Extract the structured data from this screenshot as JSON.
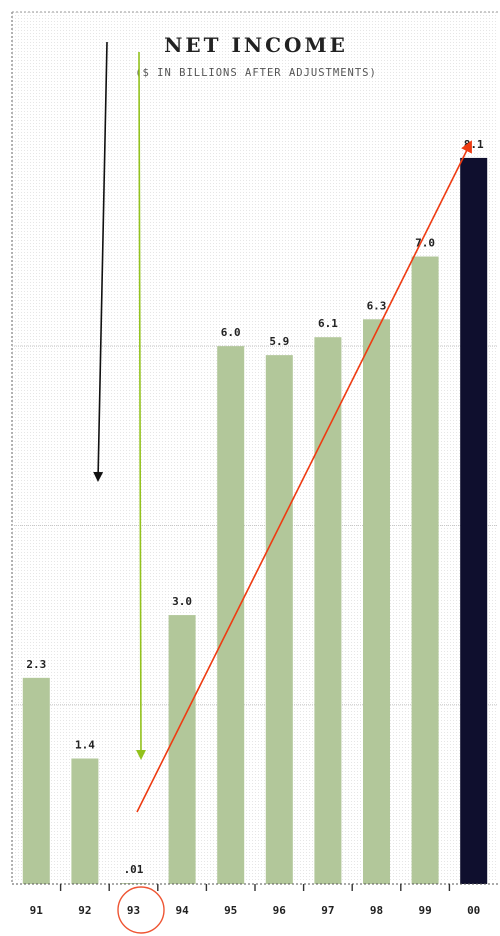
{
  "chart_data": {
    "type": "bar",
    "title": "NET INCOME",
    "subtitle": "($ IN BILLIONS AFTER ADJUSTMENTS)",
    "categories": [
      "91",
      "92",
      "93",
      "94",
      "95",
      "96",
      "97",
      "98",
      "99",
      "00"
    ],
    "values": [
      2.3,
      1.4,
      0.01,
      3.0,
      6.0,
      5.9,
      6.1,
      6.3,
      7.0,
      8.1
    ],
    "value_labels": [
      "2.3",
      "1.4",
      ".01",
      "3.0",
      "6.0",
      "5.9",
      "6.1",
      "6.3",
      "7.0",
      "8.1"
    ],
    "highlight_index": 9,
    "circled_index": 2,
    "ylim": [
      0,
      8.3
    ],
    "grid": true,
    "colors": {
      "bar": "#b2c79a",
      "highlight_bar": "#0f0f2e",
      "grid": "#c8c8c8",
      "frame": "#9a9a9a",
      "label_text": "#222222",
      "arrow_black": "#111111",
      "arrow_green": "#93c21d",
      "arrow_red": "#ee3b12",
      "circle": "#ee5533"
    },
    "annotations": [
      {
        "type": "arrow",
        "name": "black-arrow",
        "color": "black",
        "direction": "down"
      },
      {
        "type": "arrow",
        "name": "green-arrow",
        "color": "green",
        "direction": "down",
        "target_category": "93"
      },
      {
        "type": "arrow",
        "name": "red-trend-arrow",
        "color": "red",
        "direction": "up",
        "from_category": "93",
        "to_category": "00"
      },
      {
        "type": "circle",
        "name": "circle-93",
        "color": "red",
        "target_category": "93"
      }
    ]
  }
}
